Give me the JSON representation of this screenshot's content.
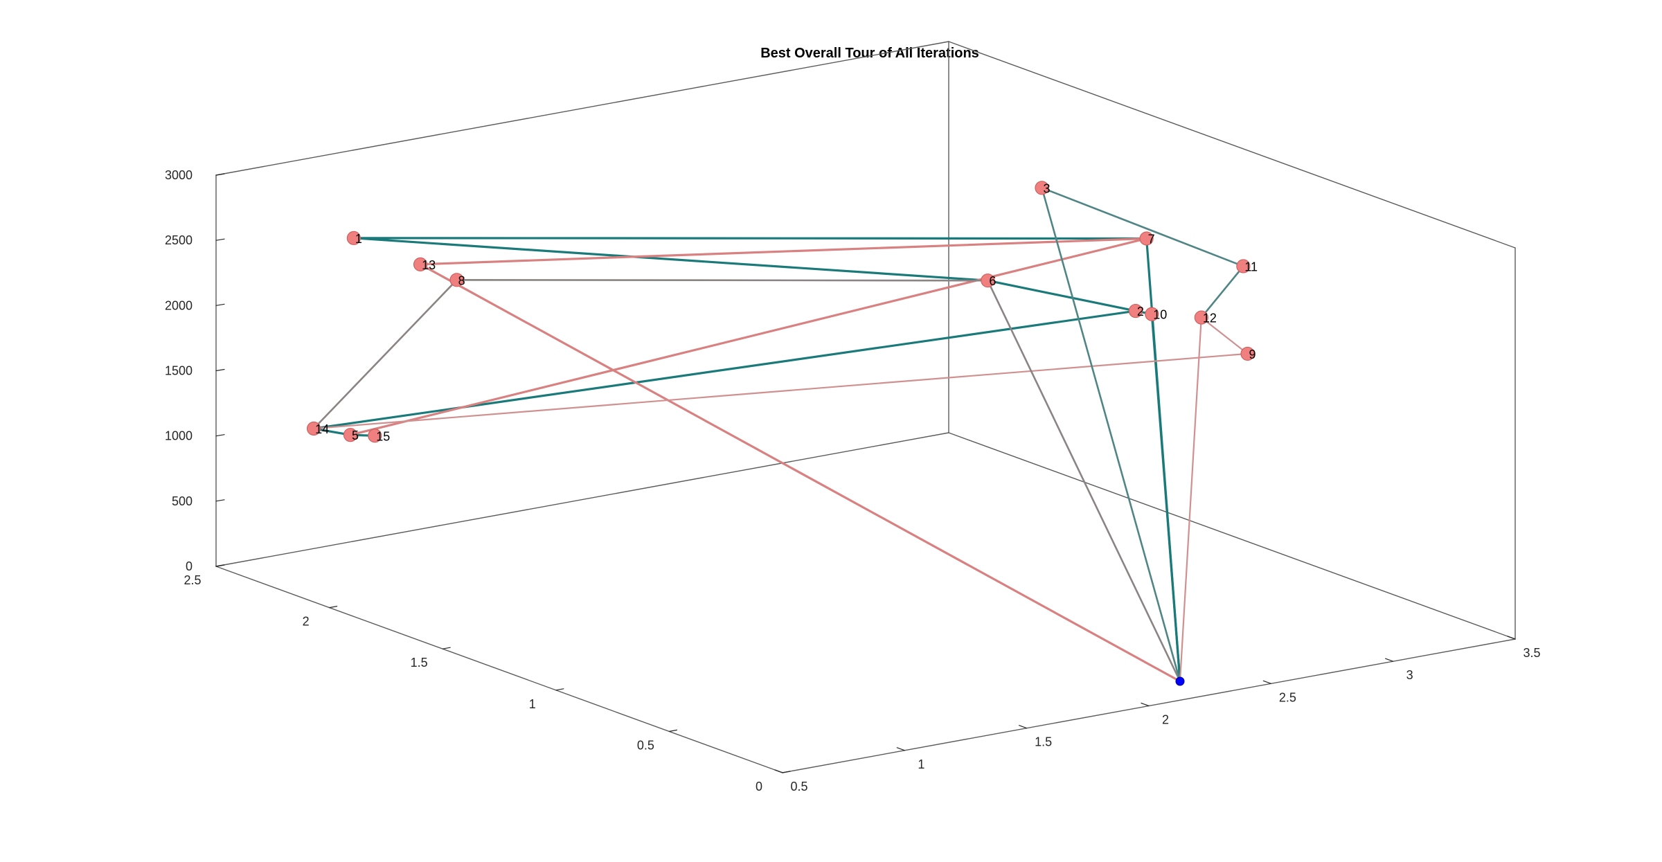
{
  "chart_data": {
    "type": "line3d",
    "title": "Best Overall Tour of All Iterations",
    "xlabel": "",
    "ylabel": "",
    "zlabel": "",
    "xlim": [
      0.5,
      3.5
    ],
    "ylim": [
      0,
      2.5
    ],
    "zlim": [
      0,
      3000
    ],
    "x_ticks": [
      "0.5",
      "1",
      "1.5",
      "2",
      "2.5",
      "3",
      "3.5"
    ],
    "y_ticks": [
      "0",
      "0.5",
      "1",
      "1.5",
      "2",
      "2.5"
    ],
    "z_ticks": [
      "0",
      "500",
      "1000",
      "1500",
      "2000",
      "2500",
      "3000"
    ],
    "grid": false,
    "legend": "none",
    "depot": {
      "label": "",
      "color": "#0000ff"
    },
    "node_color": "#f08080",
    "nodes": [
      {
        "id": "1",
        "x": 0.6,
        "y": 2.0,
        "z": 2800
      },
      {
        "id": "2",
        "x": 2.92,
        "y": 1.05,
        "z": 2050
      },
      {
        "id": "3",
        "x": 3.0,
        "y": 1.55,
        "z": 2650
      },
      {
        "id": "5",
        "x": 1.05,
        "y": 2.5,
        "z": 820
      },
      {
        "id": "6",
        "x": 2.5,
        "y": 1.25,
        "z": 2300
      },
      {
        "id": "7",
        "x": 3.15,
        "y": 1.25,
        "z": 2400
      },
      {
        "id": "8",
        "x": 1.3,
        "y": 2.3,
        "z": 2050
      },
      {
        "id": "9",
        "x": 3.1,
        "y": 0.75,
        "z": 1850
      },
      {
        "id": "10",
        "x": 2.94,
        "y": 1.0,
        "z": 2050
      },
      {
        "id": "11",
        "x": 3.5,
        "y": 1.2,
        "z": 2100
      },
      {
        "id": "12",
        "x": 3.05,
        "y": 0.9,
        "z": 2050
      },
      {
        "id": "13",
        "x": 0.78,
        "y": 1.9,
        "z": 2600
      },
      {
        "id": "14",
        "x": 0.9,
        "y": 2.5,
        "z": 920
      },
      {
        "id": "15",
        "x": 1.15,
        "y": 2.5,
        "z": 780
      }
    ],
    "series": [
      {
        "color": "#1a7a7a",
        "width": 3.2,
        "path": [
          "depot",
          "10",
          "2",
          "14",
          "5",
          "15"
        ]
      },
      {
        "color": "#1a7a7a",
        "width": 3.2,
        "path": [
          "depot",
          "7",
          "1",
          "6",
          "2"
        ]
      },
      {
        "color": "#d98080",
        "width": 3.2,
        "path": [
          "depot",
          "13",
          "7",
          "5"
        ]
      },
      {
        "color": "#d09090",
        "width": 2.2,
        "path": [
          "depot",
          "12",
          "9",
          "14"
        ]
      },
      {
        "color": "#8a8484",
        "width": 2.6,
        "path": [
          "depot",
          "6",
          "8",
          "14"
        ]
      },
      {
        "color": "#4f8585",
        "width": 2.6,
        "path": [
          "depot",
          "3",
          "11",
          "12"
        ]
      }
    ]
  }
}
